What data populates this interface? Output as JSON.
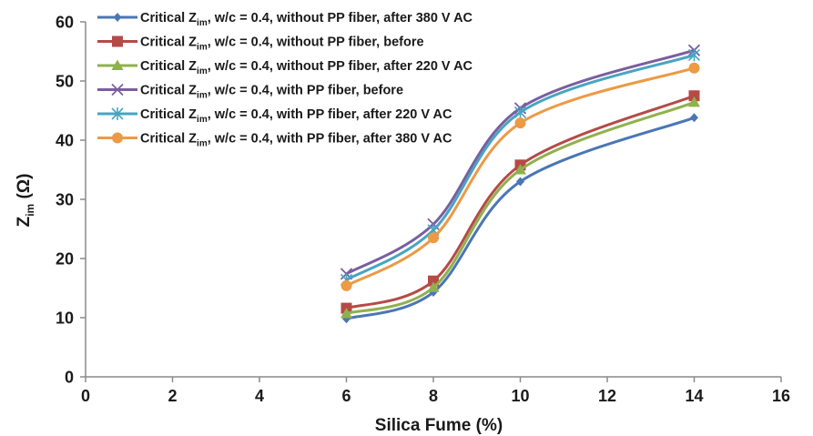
{
  "chart_data": {
    "type": "line",
    "title": "",
    "xlabel": "Silica Fume (%)",
    "ylabel_main": "Z",
    "ylabel_sub": "im",
    "ylabel_unit": " (Ω)",
    "xlim": [
      0,
      16
    ],
    "ylim": [
      0,
      60
    ],
    "x_ticks": [
      "0",
      "2",
      "4",
      "6",
      "8",
      "10",
      "12",
      "14",
      "16"
    ],
    "y_ticks": [
      "0",
      "10",
      "20",
      "30",
      "40",
      "50",
      "60"
    ],
    "grid": false,
    "legend_position": "top-left",
    "x": [
      6,
      8,
      10,
      14
    ],
    "series": [
      {
        "name_prefix": "Critical Z",
        "name_sub": "im",
        "name_suffix": ", w/c = 0.4, without PP fiber, after 380 V AC",
        "color": "#4a76b5",
        "marker": "diamond",
        "values": [
          9.8,
          14.3,
          33.0,
          43.8
        ]
      },
      {
        "name_prefix": "Critical Z",
        "name_sub": "im",
        "name_suffix": ", w/c = 0.4, without PP fiber, before",
        "color": "#b54a47",
        "marker": "square",
        "values": [
          11.6,
          16.2,
          35.8,
          47.5
        ]
      },
      {
        "name_prefix": "Critical Z",
        "name_sub": "im",
        "name_suffix": ", w/c = 0.4, without PP fiber, after 220 V AC",
        "color": "#8fb14d",
        "marker": "triangle",
        "values": [
          10.7,
          15.1,
          35.0,
          46.4
        ]
      },
      {
        "name_prefix": "Critical Z",
        "name_sub": "im",
        "name_suffix": ", w/c = 0.4, with PP fiber, before",
        "color": "#7a5ea0",
        "marker": "x",
        "values": [
          17.4,
          25.8,
          45.4,
          55.2
        ]
      },
      {
        "name_prefix": "Critical Z",
        "name_sub": "im",
        "name_suffix": ", w/c = 0.4, with PP fiber, after 220 V AC",
        "color": "#47a5c1",
        "marker": "star",
        "values": [
          16.4,
          24.8,
          44.7,
          54.4
        ]
      },
      {
        "name_prefix": "Critical Z",
        "name_sub": "im",
        "name_suffix": ", w/c = 0.4, with PP fiber, after 380 V AC",
        "color": "#ec9a46",
        "marker": "circle",
        "values": [
          15.4,
          23.5,
          42.9,
          52.2
        ]
      }
    ]
  }
}
